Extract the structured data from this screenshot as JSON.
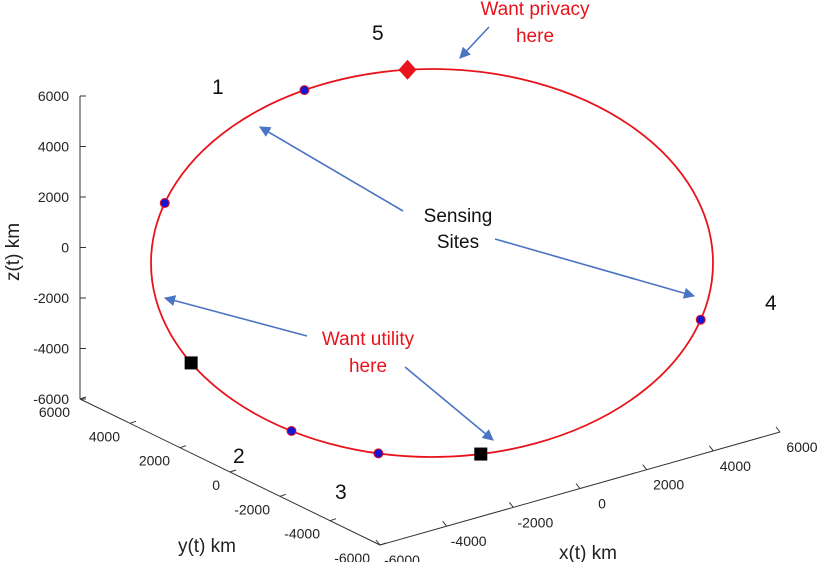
{
  "chart_data": {
    "type": "scatter",
    "projection": "3d",
    "axes": {
      "x": {
        "label": "x(t) km",
        "ticks": [
          "-6000",
          "-4000",
          "-2000",
          "0",
          "2000",
          "4000",
          "6000"
        ]
      },
      "y": {
        "label": "y(t) km",
        "ticks": [
          "-6000",
          "-4000",
          "-2000",
          "0",
          "2000",
          "4000",
          "6000"
        ]
      },
      "z": {
        "label": "z(t) km",
        "ticks": [
          "-6000",
          "-4000",
          "-2000",
          "0",
          "2000",
          "4000",
          "6000"
        ]
      }
    },
    "grid": false,
    "orbit": {
      "shape": "circular",
      "radius_km": 6700,
      "color": "#e8131b"
    },
    "sensing_sites": [
      {
        "label": "1",
        "angle_deg": 162
      },
      {
        "label": "2",
        "angle_deg": 240
      },
      {
        "label": "3",
        "angle_deg": 259
      },
      {
        "label": "4",
        "angle_deg": 343
      },
      {
        "label": "5",
        "angle_deg": 117
      }
    ],
    "utility_points": [
      {
        "angle_deg": 211
      },
      {
        "angle_deg": 280
      }
    ],
    "privacy_point": {
      "angle_deg": 95
    },
    "annotations": {
      "privacy": [
        "Want privacy",
        "here"
      ],
      "utility": [
        "Want utility",
        "here"
      ],
      "sensing": [
        "Sensing",
        "Sites"
      ]
    },
    "colors": {
      "orbit": "#e8131b",
      "site": "#1515d6",
      "utility": "#000000",
      "privacy": "#e8131b",
      "arrow": "#4a74c4"
    }
  }
}
